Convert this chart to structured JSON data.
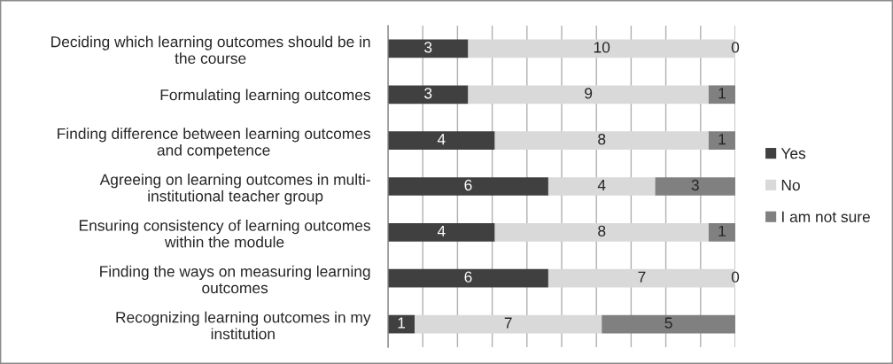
{
  "chart_data": {
    "type": "bar",
    "orientation": "horizontal",
    "stacked": true,
    "categories": [
      "Deciding which learning outcomes should be in\nthe course",
      "Formulating learning outcomes",
      "Finding difference between learning outcomes\nand competence",
      "Agreeing on learning outcomes in multi-\ninstitutional teacher group",
      "Ensuring consistency of learning outcomes\nwithin the module",
      "Finding the ways on measuring learning\noutcomes",
      "Recognizing learning outcomes in my\ninstitution"
    ],
    "series": [
      {
        "name": "Yes",
        "color": "#404040",
        "values": [
          3,
          3,
          4,
          6,
          4,
          6,
          1
        ]
      },
      {
        "name": "No",
        "color": "#d9d9d9",
        "values": [
          10,
          9,
          8,
          4,
          8,
          7,
          7
        ]
      },
      {
        "name": "I am not sure",
        "color": "#808080",
        "values": [
          0,
          1,
          1,
          3,
          1,
          0,
          5
        ]
      }
    ],
    "xlim": [
      0,
      13
    ],
    "xticks": [
      {
        "value": 0,
        "label": null
      },
      {
        "value": 1.3,
        "label": null
      },
      {
        "value": 2.6,
        "label": null
      },
      {
        "value": 3.9,
        "label": null
      },
      {
        "value": 5.2,
        "label": null
      },
      {
        "value": 6.5,
        "label": null
      },
      {
        "value": 7.8,
        "label": null
      },
      {
        "value": 9.1,
        "label": null
      },
      {
        "value": 10.4,
        "label": null
      },
      {
        "value": 11.7,
        "label": null
      },
      {
        "value": 13,
        "label": null
      }
    ],
    "grid": "x",
    "legend": "right",
    "tick_labels": "y",
    "data_labels": true
  }
}
